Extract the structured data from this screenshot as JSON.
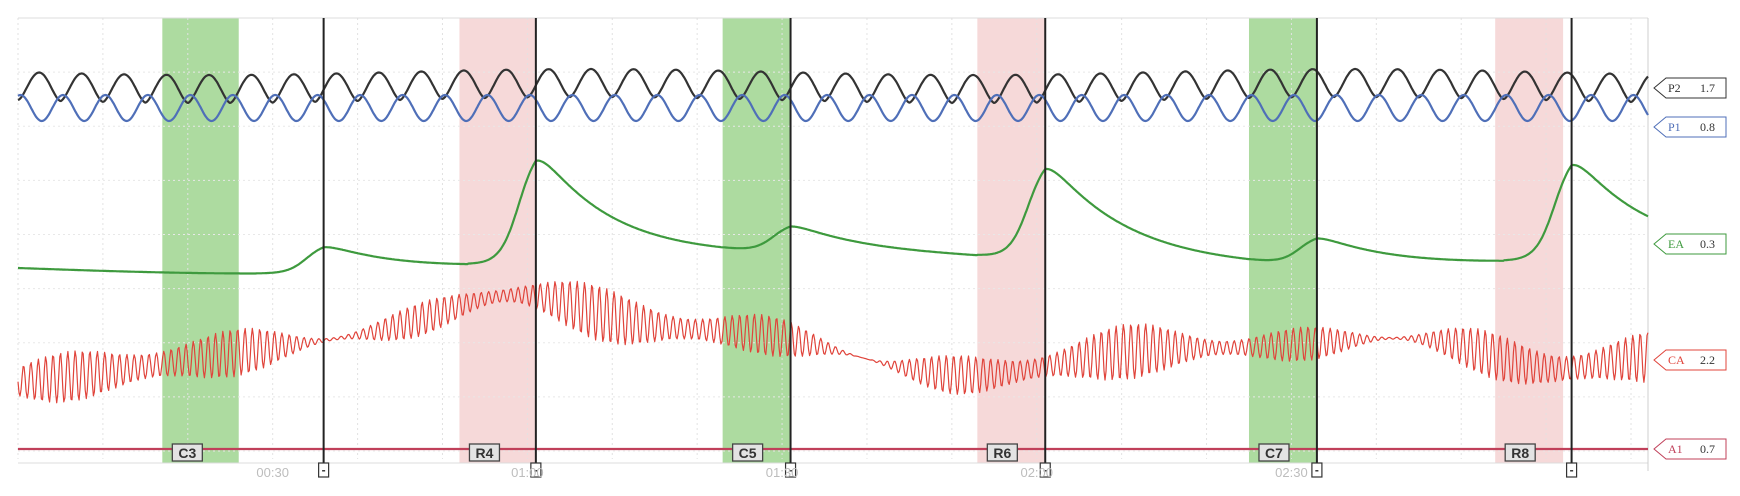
{
  "chart_data": {
    "type": "line",
    "title": "",
    "xlabel": "",
    "ylabel": "",
    "x_unit": "mm:ss",
    "x_range": [
      "00:00",
      "03:12"
    ],
    "grid": true,
    "x_ticks": [
      "00:30",
      "01:00",
      "01:30",
      "02:00",
      "02:30"
    ],
    "questions": [
      {
        "label": "C3",
        "type": "control",
        "start": "00:17",
        "end": "00:26",
        "marker": "00:36"
      },
      {
        "label": "R4",
        "type": "relevant",
        "start": "00:52",
        "end": "01:01",
        "marker": "01:01"
      },
      {
        "label": "C5",
        "type": "control",
        "start": "01:23",
        "end": "01:31",
        "marker": "01:31"
      },
      {
        "label": "R6",
        "type": "relevant",
        "start": "01:53",
        "end": "02:01",
        "marker": "02:01"
      },
      {
        "label": "C7",
        "type": "control",
        "start": "02:25",
        "end": "02:33",
        "marker": "02:33"
      },
      {
        "label": "R8",
        "type": "relevant",
        "start": "02:54",
        "end": "03:02",
        "marker": "03:03"
      }
    ],
    "series": [
      {
        "name": "P2",
        "value": "1.7",
        "color": "#333333"
      },
      {
        "name": "P1",
        "value": "0.8",
        "color": "#4f6fb8"
      },
      {
        "name": "EA",
        "value": "0.3",
        "color": "#3e9a3e"
      },
      {
        "name": "CA",
        "value": "2.2",
        "color": "#e0443b"
      },
      {
        "name": "A1",
        "value": "0.7",
        "color": "#c0405a"
      }
    ],
    "colors": {
      "control_band": "#9fd58f",
      "relevant_band": "#f5d5d5"
    }
  }
}
